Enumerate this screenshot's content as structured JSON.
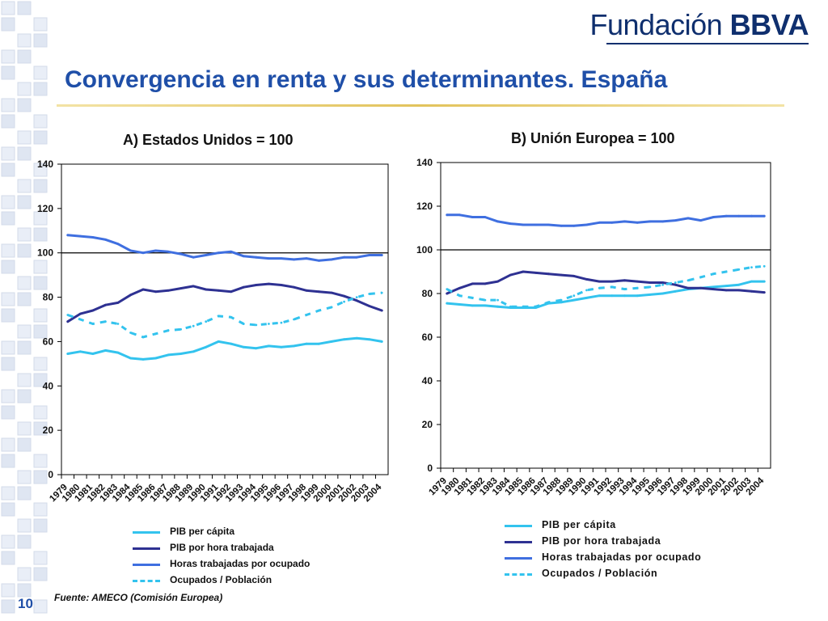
{
  "logo": {
    "text_light": "Fundación",
    "text_bold": "BBVA"
  },
  "title": "Convergencia en renta y sus determinantes. España",
  "source": "Fuente:  AMECO (Comisión Europea)",
  "page_number": "10",
  "colors": {
    "pib_per_capita": "#33c3ee",
    "pib_por_hora": "#2e3192",
    "horas_por_ocupado": "#3f6fe0",
    "ocupados_poblacion": "#33c3ee",
    "title": "#1f4fa8",
    "logo": "#0f2f6e"
  },
  "chart_data": [
    {
      "type": "line",
      "title": "A) Estados Unidos = 100",
      "x": [
        "1979",
        "1980",
        "1981",
        "1982",
        "1983",
        "1984",
        "1985",
        "1986",
        "1987",
        "1988",
        "1989",
        "1990",
        "1991",
        "1992",
        "1993",
        "1994",
        "1995",
        "1996",
        "1997",
        "1998",
        "1999",
        "2000",
        "2001",
        "2002",
        "2003",
        "2004"
      ],
      "ylim": [
        0,
        140
      ],
      "yticks": [
        "0",
        "20",
        "40",
        "60",
        "80",
        "100",
        "120",
        "140"
      ],
      "reference_line": 100,
      "grid": false,
      "series": [
        {
          "name": "PIB per cápita",
          "style": "solid",
          "color": "#33c3ee",
          "values": [
            54.5,
            55.5,
            54.5,
            56,
            55,
            52.5,
            52,
            52.5,
            54,
            54.5,
            55.5,
            57.5,
            60,
            59,
            57.5,
            57,
            58,
            57.5,
            58,
            59,
            59,
            60,
            61,
            61.5,
            61,
            60
          ]
        },
        {
          "name": "PIB por hora trabajada",
          "style": "solid",
          "color": "#2e3192",
          "values": [
            69,
            72.5,
            74,
            76.5,
            77.5,
            81,
            83.5,
            82.5,
            83,
            84,
            85,
            83.5,
            83,
            82.5,
            84.5,
            85.5,
            86,
            85.5,
            84.5,
            83,
            82.5,
            82,
            80.5,
            78.5,
            76,
            74
          ]
        },
        {
          "name": "Horas trabajadas por ocupado",
          "style": "solid",
          "color": "#3f6fe0",
          "values": [
            108,
            107.5,
            107,
            106,
            104,
            101,
            100,
            101,
            100.5,
            99.5,
            98,
            99,
            100,
            100.5,
            98.5,
            98,
            97.5,
            97.5,
            97,
            97.5,
            96.5,
            97,
            98,
            98,
            99,
            99
          ]
        },
        {
          "name": "Ocupados / Población",
          "style": "dashed",
          "color": "#33c3ee",
          "values": [
            72,
            70,
            68,
            69,
            68,
            64,
            62,
            63.5,
            65,
            65.5,
            67,
            69,
            71.5,
            71,
            68,
            67.5,
            68,
            68.5,
            70,
            72,
            74,
            75.5,
            78,
            80,
            81.5,
            82
          ]
        }
      ]
    },
    {
      "type": "line",
      "title": "B) Unión Europea = 100",
      "x": [
        "1979",
        "1980",
        "1981",
        "1982",
        "1983",
        "1984",
        "1985",
        "1986",
        "1987",
        "1988",
        "1989",
        "1990",
        "1991",
        "1992",
        "1993",
        "1994",
        "1995",
        "1996",
        "1997",
        "1998",
        "1999",
        "2000",
        "2001",
        "2002",
        "2003",
        "2004"
      ],
      "ylim": [
        0,
        140
      ],
      "yticks": [
        "0",
        "20",
        "40",
        "60",
        "80",
        "100",
        "120",
        "140"
      ],
      "reference_line": 100,
      "grid": false,
      "series": [
        {
          "name": "PIB per cápita",
          "style": "solid",
          "color": "#33c3ee",
          "values": [
            75.5,
            75,
            74.5,
            74.5,
            74,
            73.5,
            73.5,
            73.5,
            75.5,
            76,
            77,
            78,
            79,
            79,
            79,
            79,
            79.5,
            80,
            81,
            82,
            82.5,
            83,
            83.5,
            84,
            85.5,
            85.5
          ]
        },
        {
          "name": "PIB por hora trabajada",
          "style": "solid",
          "color": "#2e3192",
          "values": [
            80,
            82.5,
            84.5,
            84.5,
            85.5,
            88.5,
            90,
            89.5,
            89,
            88.5,
            88,
            86.5,
            85.5,
            85.5,
            86,
            85.5,
            85,
            85,
            84,
            82.5,
            82.5,
            82,
            81.5,
            81.5,
            81,
            80.5
          ]
        },
        {
          "name": "Horas trabajadas por ocupado",
          "style": "solid",
          "color": "#3f6fe0",
          "values": [
            116,
            116,
            115,
            115,
            113,
            112,
            111.5,
            111.5,
            111.5,
            111,
            111,
            111.5,
            112.5,
            112.5,
            113,
            112.5,
            113,
            113,
            113.5,
            114.5,
            113.5,
            115,
            115.5,
            115.5,
            115.5,
            115.5
          ]
        },
        {
          "name": "Ocupados / Población",
          "style": "dashed",
          "color": "#33c3ee",
          "values": [
            82,
            79,
            78,
            77,
            77,
            74,
            74,
            74,
            76,
            77,
            79,
            81.5,
            82.5,
            83,
            82,
            82.5,
            83,
            84,
            85,
            86,
            87.5,
            89,
            90,
            91,
            92,
            92.5
          ]
        }
      ]
    }
  ]
}
